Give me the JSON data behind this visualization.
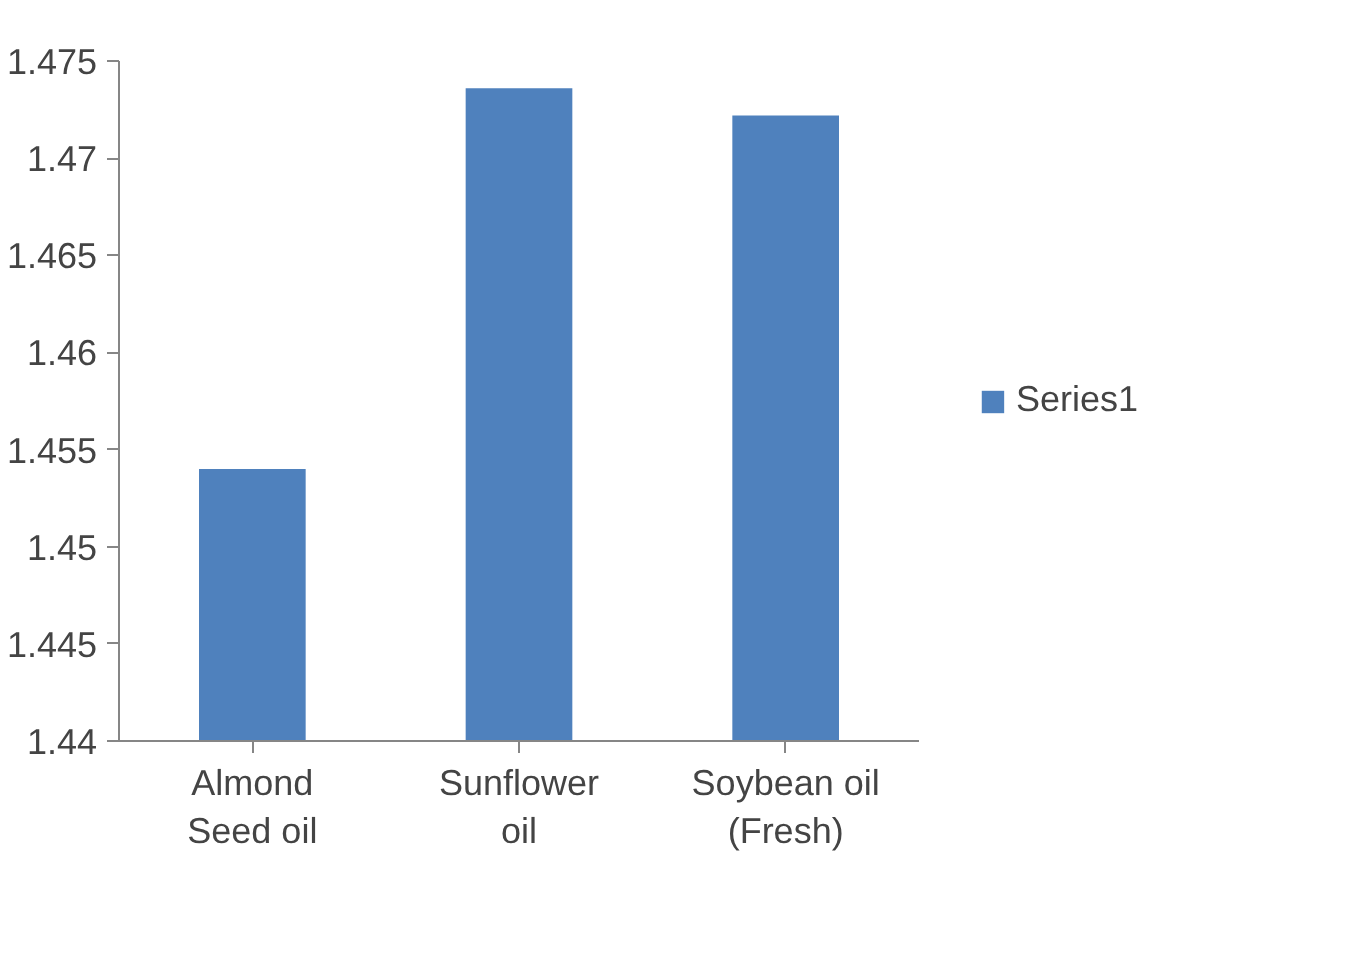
{
  "chart_data": {
    "type": "bar",
    "categories": [
      "Almond\nSeed oil",
      "Sunflower\noil",
      "Soybean oil\n(Fresh)"
    ],
    "series": [
      {
        "name": "Series1",
        "color": "#4f81bd",
        "values": [
          1.454,
          1.4736,
          1.4722
        ]
      }
    ],
    "ylim": [
      1.44,
      1.475
    ],
    "yticks": [
      1.44,
      1.445,
      1.45,
      1.455,
      1.46,
      1.465,
      1.47,
      1.475
    ],
    "grid": false,
    "legend": "right"
  }
}
